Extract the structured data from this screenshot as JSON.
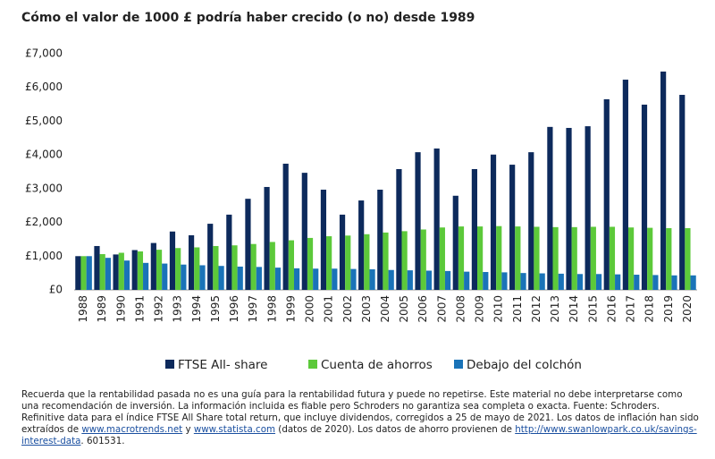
{
  "chart_data": {
    "type": "bar",
    "title": "Cómo el valor de 1000 £ podría haber crecido (o no) desde 1989",
    "categories": [
      "1988",
      "1989",
      "1990",
      "1991",
      "1992",
      "1993",
      "1994",
      "1995",
      "1996",
      "1997",
      "1998",
      "1999",
      "2000",
      "2001",
      "2002",
      "2003",
      "2004",
      "2005",
      "2006",
      "2007",
      "2008",
      "2009",
      "2010",
      "2011",
      "2012",
      "2013",
      "2014",
      "2015",
      "2016",
      "2017",
      "2018",
      "2019",
      "2020"
    ],
    "series": [
      {
        "name": "FTSE All- share",
        "color": "#0d2a5c",
        "values": [
          1000,
          1300,
          1050,
          1180,
          1390,
          1730,
          1620,
          1960,
          2230,
          2700,
          3050,
          3740,
          3470,
          2970,
          2230,
          2650,
          2970,
          3580,
          4080,
          4190,
          2790,
          3580,
          4010,
          3710,
          4080,
          4830,
          4800,
          4850,
          5650,
          6230,
          5490,
          6470,
          5780
        ]
      },
      {
        "name": "Cuenta de ahorros",
        "color": "#5cc93a",
        "values": [
          1000,
          1060,
          1100,
          1140,
          1190,
          1240,
          1260,
          1300,
          1320,
          1360,
          1420,
          1470,
          1540,
          1590,
          1610,
          1650,
          1700,
          1740,
          1790,
          1850,
          1880,
          1880,
          1890,
          1880,
          1870,
          1860,
          1860,
          1870,
          1870,
          1850,
          1840,
          1830,
          1830
        ]
      },
      {
        "name": "Debajo del colchón",
        "color": "#1a73b8",
        "values": [
          1000,
          950,
          870,
          800,
          780,
          750,
          730,
          710,
          690,
          680,
          660,
          640,
          630,
          630,
          620,
          610,
          590,
          580,
          570,
          560,
          540,
          530,
          520,
          500,
          490,
          480,
          470,
          470,
          460,
          450,
          440,
          430,
          430
        ]
      }
    ],
    "ylim": [
      0,
      7000
    ],
    "yticks": [
      {
        "value": 0,
        "label": "£0"
      },
      {
        "value": 1000,
        "label": "£1,000"
      },
      {
        "value": 2000,
        "label": "£2,000"
      },
      {
        "value": 3000,
        "label": "£3,000"
      },
      {
        "value": 4000,
        "label": "£4,000"
      },
      {
        "value": 5000,
        "label": "£5,000"
      },
      {
        "value": 6000,
        "label": "£6,000"
      },
      {
        "value": 7000,
        "label": "£7,000"
      }
    ],
    "grid": false
  },
  "footnote": [
    "Recuerda que la rentabilidad pasada no es una guía para la rentabilidad futura y puede no repetirse. Este material no debe interpretarse como una recomendación de inversión. La información incluida es fiable pero Schroders no garantiza sea completa o exacta. Fuente: Schroders. Refinitive data para el índice FTSE All Share total return, que incluye dividendos, corregidos a 25 de mayo de 2021. Los datos de inflación han sido extraídos de ",
    "www.macrotrends.net",
    " y ",
    "www.statista.com",
    " (datos de 2020). Los datos de ahorro provienen de ",
    "http://www.swanlowpark.co.uk/savings-interest-data",
    ". 601531."
  ]
}
